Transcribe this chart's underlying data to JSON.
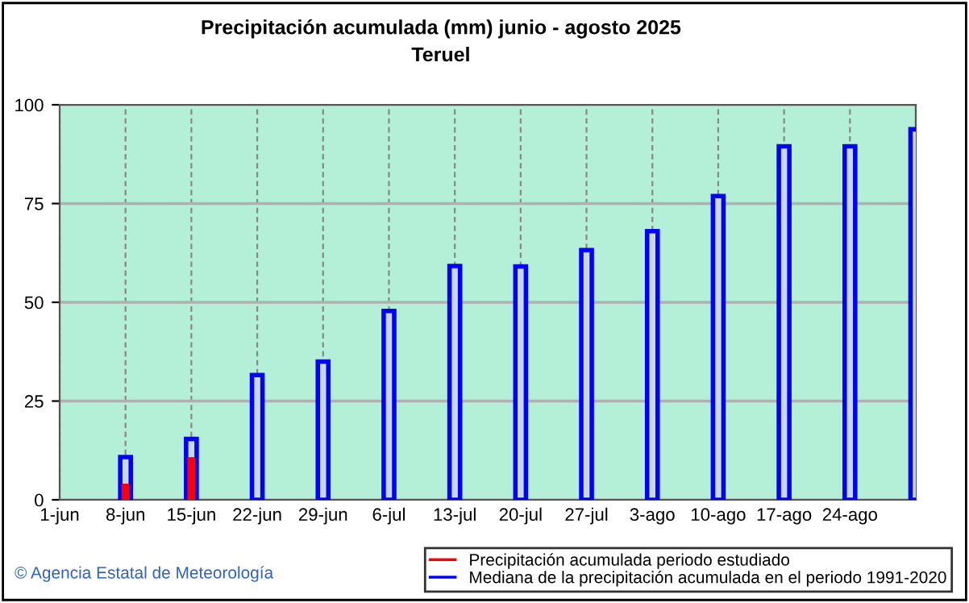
{
  "chart_data": {
    "type": "bar",
    "title": "Precipitación acumulada (mm) junio - agosto 2025",
    "subtitle": "Teruel",
    "categories": [
      "1-jun",
      "8-jun",
      "15-jun",
      "22-jun",
      "29-jun",
      "6-jul",
      "13-jul",
      "20-jul",
      "27-jul",
      "3-ago",
      "10-ago",
      "17-ago",
      "24-ago",
      null
    ],
    "series": [
      {
        "name": "Precipitación acumulada periodo estudiado",
        "color": "#ff0000",
        "values": [
          null,
          4.1,
          10.8,
          null,
          null,
          null,
          null,
          null,
          null,
          null,
          null,
          null,
          null,
          null
        ]
      },
      {
        "name": "Mediana de la precipitación acumulada en el periodo 1991-2020",
        "color": "#0000ff",
        "values": [
          null,
          10.8,
          15.4,
          31.6,
          35.0,
          47.8,
          59.2,
          59.1,
          63.2,
          68.0,
          76.9,
          89.5,
          89.5,
          93.8
        ]
      }
    ],
    "ylim": [
      0,
      100
    ],
    "yticks": [
      0,
      25,
      50,
      75,
      100
    ],
    "grid": true,
    "legend": "bottom",
    "annotations": [
      "© Agencia Estatal de Meteorología"
    ]
  }
}
